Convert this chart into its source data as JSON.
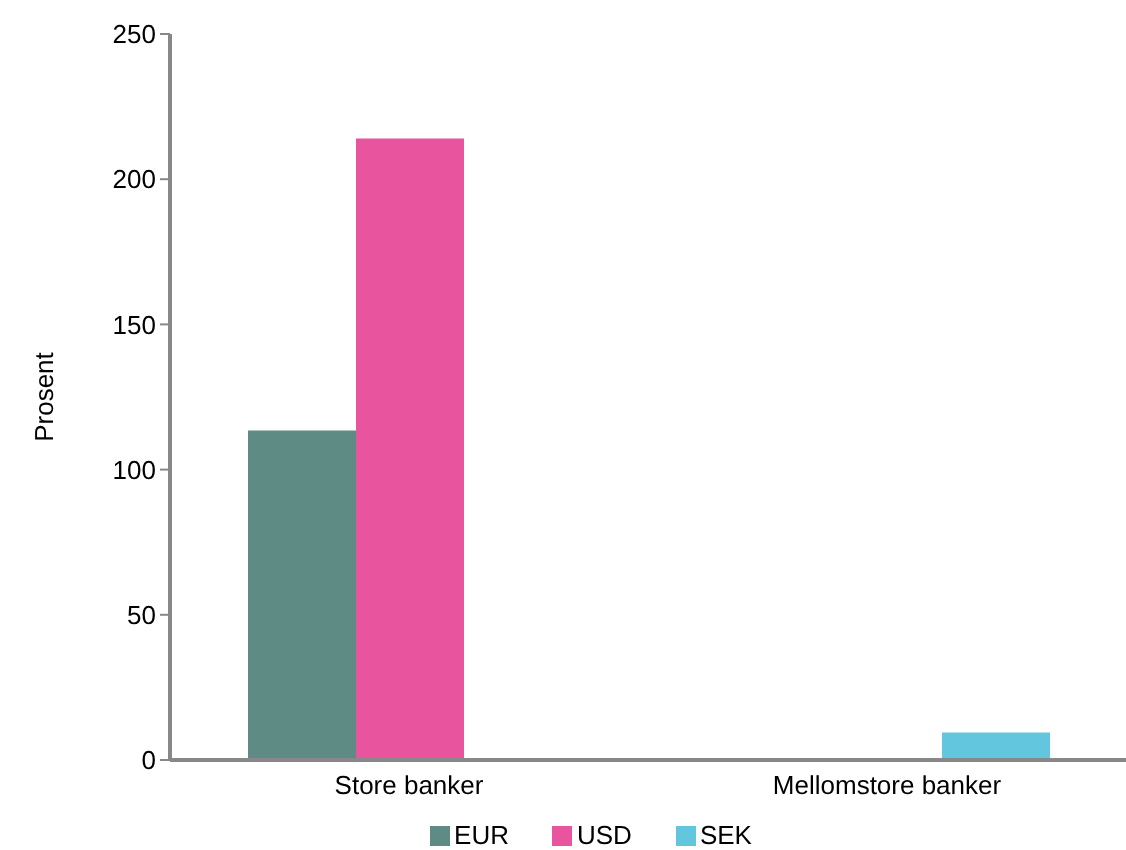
{
  "chart_data": {
    "type": "bar",
    "ylabel": "Prosent",
    "categories": [
      "Store banker",
      "Mellomstore banker"
    ],
    "series": [
      {
        "name": "EUR",
        "color": "#5e8c84",
        "values": [
          113.5,
          0
        ]
      },
      {
        "name": "USD",
        "color": "#e8559e",
        "values": [
          214,
          0
        ]
      },
      {
        "name": "SEK",
        "color": "#62c6de",
        "values": [
          0,
          9.5
        ]
      }
    ],
    "ylim": [
      0,
      250
    ],
    "yticks": [
      0,
      50,
      100,
      150,
      200,
      250
    ],
    "legend": "bottom"
  }
}
